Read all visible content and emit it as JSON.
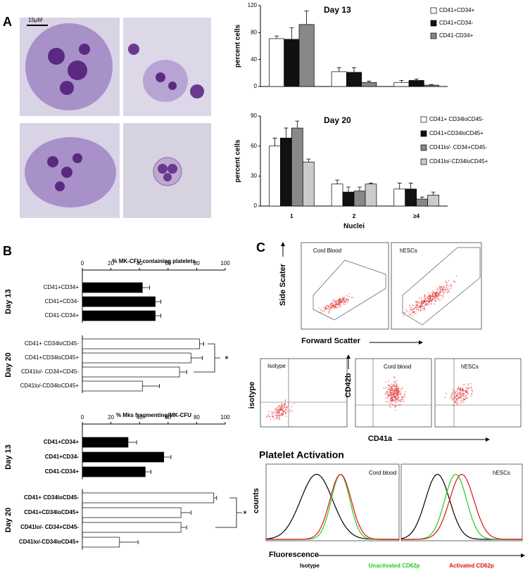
{
  "panel_labels": [
    "A",
    "B",
    "C"
  ],
  "scale_bar": "15μM",
  "flow": {
    "scatter_titles": [
      "Cord Blood",
      "hESCs"
    ],
    "y_label": "Side Scater",
    "x_label": "Forward Scatter",
    "dot_titles": [
      "Isotype",
      "Cord blood",
      "hESCs"
    ],
    "dot_row_label": "isotype",
    "dot_y_label": "CD42b",
    "dot_x_label": "CD41a",
    "activation_title": "Platelet Activation",
    "hist_titles": [
      "Cord blood",
      "hESCs"
    ],
    "hist_y_label": "counts",
    "hist_x_label": "Fluorescence",
    "hist_legend": [
      {
        "name": "Isotype",
        "color": "#000000"
      },
      {
        "name": "Unactivated CD62p",
        "color": "#22cc22"
      },
      {
        "name": "Activated CD62p",
        "color": "#dd1111"
      }
    ]
  },
  "chart_data": [
    {
      "type": "bar",
      "title": "Day 13",
      "ylabel": "percent cells",
      "ylim": [
        0,
        120
      ],
      "yticks": [
        0,
        40,
        80,
        120
      ],
      "series": [
        {
          "name": "CD41+CD34+",
          "color": "#ffffff",
          "values": [
            71,
            22,
            6
          ],
          "errors": [
            4,
            6,
            3
          ]
        },
        {
          "name": "CD41+CD34-",
          "color": "#111111",
          "values": [
            70,
            21,
            9
          ],
          "errors": [
            17,
            7,
            2
          ]
        },
        {
          "name": "CD41-CD34+",
          "color": "#888888",
          "values": [
            92,
            6,
            2
          ],
          "errors": [
            20,
            2,
            1
          ]
        }
      ]
    },
    {
      "type": "bar",
      "title": "Day 20",
      "ylabel": "percent cells",
      "xlabel": "Nuclei",
      "categories": [
        "1",
        "2",
        "≥4"
      ],
      "ylim": [
        0,
        90
      ],
      "yticks": [
        0,
        30,
        60,
        90
      ],
      "series": [
        {
          "name": "CD41+ CD34loCD45-",
          "color": "#ffffff",
          "values": [
            60,
            22,
            17
          ],
          "errors": [
            8,
            4,
            6
          ]
        },
        {
          "name": "CD41+CD34loCD45+",
          "color": "#111111",
          "values": [
            68,
            14,
            17
          ],
          "errors": [
            10,
            5,
            6
          ]
        },
        {
          "name": "CD41lo/- CD34+CD45-",
          "color": "#888888",
          "values": [
            78,
            15,
            7
          ],
          "errors": [
            7,
            4,
            2
          ]
        },
        {
          "name": "CD41lo/-CD34loCD45+",
          "color": "#cccccc",
          "values": [
            44,
            22,
            11
          ],
          "errors": [
            3,
            1,
            3
          ]
        }
      ]
    },
    {
      "type": "barh",
      "title": "% MK-CFU containing platelets",
      "xlim": [
        0,
        100
      ],
      "xticks": [
        0,
        20,
        40,
        60,
        80,
        100
      ],
      "annotation": "*",
      "groups": [
        {
          "name": "Day 13",
          "color": "#000000",
          "categories": [
            "CD41+CD34+",
            "CD41+CD34-",
            "CD41-CD34+"
          ],
          "values": [
            42,
            51,
            51
          ],
          "errors": [
            5,
            4,
            4
          ]
        },
        {
          "name": "Day 20",
          "color": "#ffffff",
          "categories": [
            "CD41+ CD34loCD45-",
            "CD41+CD34loCD45+",
            "CD41lo/- CD34+CD45-",
            "CD41lo/-CD34loCD45+"
          ],
          "values": [
            82,
            76,
            68,
            42
          ],
          "errors": [
            3,
            8,
            5,
            12
          ]
        }
      ]
    },
    {
      "type": "barh",
      "title": "% Mks fragmenting/MK-CFU",
      "xlim": [
        0,
        100
      ],
      "xticks": [
        0,
        20,
        40,
        60,
        80,
        100
      ],
      "annotation": "*",
      "groups": [
        {
          "name": "Day 13",
          "color": "#000000",
          "categories": [
            "CD41+CD34+",
            "CD41+CD34-",
            "CD41-CD34+"
          ],
          "values": [
            32,
            57,
            44
          ],
          "errors": [
            6,
            5,
            4
          ]
        },
        {
          "name": "Day 20",
          "color": "#ffffff",
          "categories": [
            "CD41+ CD34loCD45-",
            "CD41+CD34loCD45+",
            "CD41lo/- CD34+CD45-",
            "CD41lo/-CD34loCD45+"
          ],
          "values": [
            92,
            69,
            69,
            26
          ],
          "errors": [
            2,
            7,
            4,
            13
          ]
        }
      ]
    }
  ]
}
